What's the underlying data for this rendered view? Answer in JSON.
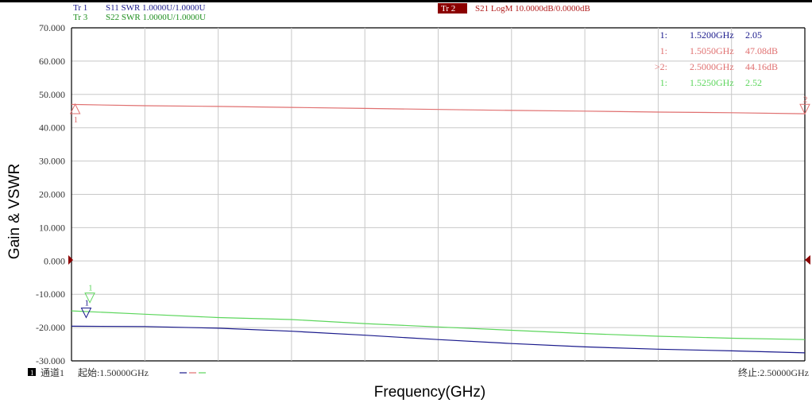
{
  "header": {
    "traces": [
      {
        "label": "Tr 1",
        "meas": "S11 SWR 1.0000U/1.0000U",
        "color": "#1a1a8c"
      },
      {
        "label": "Tr 3",
        "meas": "S22 SWR 1.0000U/1.0000U",
        "color": "#1f8f1f"
      }
    ],
    "active_trace": {
      "label": "Tr 2",
      "meas": "S21 LogM 10.0000dB/0.0000dB",
      "color": "#b01a1a",
      "label_bg": "#8b0000"
    }
  },
  "footer": {
    "channel_index": "1",
    "channel_label": "通道1",
    "start_label": "起始:1.50000GHz",
    "stop_label": "终止:2.50000GHz"
  },
  "colors": {
    "grid": "#c8c8c8",
    "frame": "#000000",
    "s11": "#1a1a8c",
    "s21": "#e07070",
    "s22": "#5cd65c",
    "ref_marker": "#8b0000"
  },
  "chart_data": {
    "type": "line",
    "title": "",
    "xlabel": "Frequency(GHz)",
    "ylabel": "Gain & VSWR",
    "xlim": [
      1.5,
      2.5
    ],
    "ylim": [
      -30,
      70
    ],
    "y_ticks": [
      "70.000",
      "60.000",
      "50.000",
      "40.000",
      "30.000",
      "20.000",
      "10.000",
      "0.000",
      "-10.000",
      "-20.000",
      "-30.000"
    ],
    "x_grid_divisions": 10,
    "grid": true,
    "reference_level": 0,
    "series": [
      {
        "trace": "s21",
        "x": [
          1.5,
          1.6,
          1.7,
          1.8,
          1.9,
          2.0,
          2.1,
          2.2,
          2.3,
          2.4,
          2.5
        ],
        "y": [
          47.0,
          46.6,
          46.4,
          46.1,
          45.8,
          45.5,
          45.2,
          45.0,
          44.7,
          44.5,
          44.2
        ]
      },
      {
        "trace": "s22",
        "x": [
          1.5,
          1.6,
          1.7,
          1.8,
          1.9,
          2.0,
          2.1,
          2.2,
          2.3,
          2.4,
          2.5
        ],
        "y": [
          -15.0,
          -16.0,
          -17.0,
          -17.6,
          -18.8,
          -19.8,
          -20.8,
          -21.8,
          -22.6,
          -23.2,
          -23.6
        ]
      },
      {
        "trace": "s11",
        "x": [
          1.5,
          1.6,
          1.7,
          1.8,
          1.9,
          2.0,
          2.1,
          2.2,
          2.3,
          2.4,
          2.5
        ],
        "y": [
          -19.6,
          -19.7,
          -20.2,
          -21.1,
          -22.3,
          -23.6,
          -24.8,
          -25.8,
          -26.5,
          -27.0,
          -27.6
        ]
      }
    ],
    "markers": [
      {
        "id": "s21-m1",
        "label": "1",
        "trace": "s21",
        "x": 1.505,
        "y": 47.08,
        "side": "below"
      },
      {
        "id": "s21-m2",
        "label": "2",
        "trace": "s21",
        "x": 2.5,
        "y": 44.16,
        "side": "above"
      },
      {
        "id": "s22-m1",
        "label": "1",
        "trace": "s22",
        "x": 1.525,
        "y": -12.5,
        "side": "above"
      },
      {
        "id": "s11-m1",
        "label": "1",
        "trace": "s11",
        "x": 1.52,
        "y": -17.0,
        "side": "above"
      }
    ],
    "marker_table": [
      {
        "prefix": "1:",
        "freq": "1.5200GHz",
        "value": "2.05",
        "trace": "s11"
      },
      {
        "prefix": "1:",
        "freq": "1.5050GHz",
        "value": "47.08dB",
        "trace": "s21"
      },
      {
        "prefix": ">2:",
        "freq": "2.5000GHz",
        "value": "44.16dB",
        "trace": "s21"
      },
      {
        "prefix": "1:",
        "freq": "1.5250GHz",
        "value": "2.52",
        "trace": "s22"
      }
    ]
  }
}
